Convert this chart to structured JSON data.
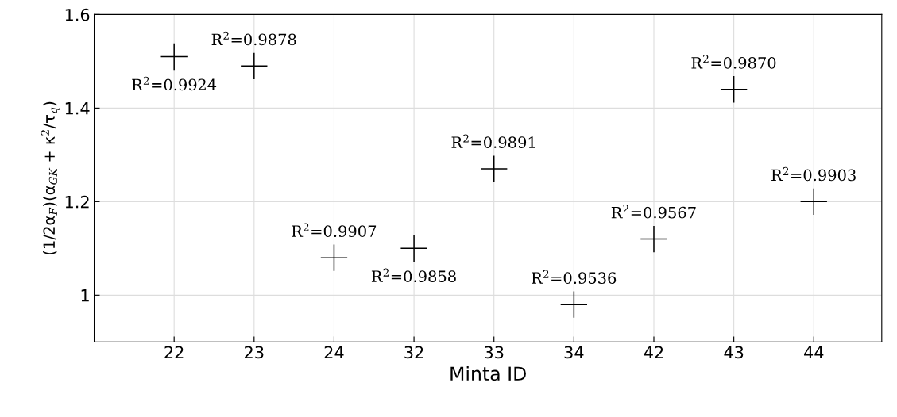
{
  "chart_data": {
    "type": "scatter",
    "xlabel": "Minta ID",
    "ylabel": "(1/2α$_{F}$)(α$_{GK}$ + κ$^{2}$/τ$_{q}$)",
    "categories": [
      "22",
      "23",
      "24",
      "32",
      "33",
      "34",
      "42",
      "43",
      "44"
    ],
    "series": [
      {
        "color": "#000000",
        "values": [
          1.51,
          1.49,
          1.08,
          1.1,
          1.27,
          0.98,
          1.12,
          1.44,
          1.2
        ]
      }
    ],
    "marker": "cross",
    "grid": true,
    "ylim": [
      0.9,
      1.6
    ],
    "yticks": [
      1,
      1.2,
      1.4,
      1.6
    ],
    "annotations": [
      {
        "text": "R$^{2}$=0.9924",
        "x": "22",
        "y": 1.51
      },
      {
        "text": "R$^{2}$=0.9878",
        "x": "23",
        "y": 1.49
      },
      {
        "text": "R$^{2}$=0.9907",
        "x": "24",
        "y": 1.08
      },
      {
        "text": "R$^{2}$=0.9858",
        "x": "32",
        "y": 1.1
      },
      {
        "text": "R$^{2}$=0.9891",
        "x": "33",
        "y": 1.27
      },
      {
        "text": "R$^{2}$=0.9536",
        "x": "34",
        "y": 0.98
      },
      {
        "text": "R$^{2}$=0.9567",
        "x": "42",
        "y": 1.12
      },
      {
        "text": "R$^{2}$=0.9870",
        "x": "43",
        "y": 1.44
      },
      {
        "text": "R$^{2}$=0.9903",
        "x": "44",
        "y": 1.2
      }
    ]
  }
}
